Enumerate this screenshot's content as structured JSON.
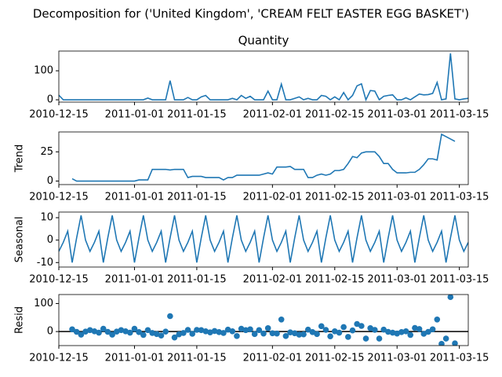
{
  "chart_data": {
    "type": "decomposition",
    "title": "Decomposition for ('United Kingdom', 'CREAM FELT EASTER EGG BASKET')",
    "color": "#1f77b4",
    "x": [
      "2010-12-15",
      "2010-12-16",
      "2010-12-17",
      "2010-12-18",
      "2010-12-19",
      "2010-12-20",
      "2010-12-21",
      "2010-12-22",
      "2010-12-23",
      "2010-12-24",
      "2010-12-25",
      "2010-12-26",
      "2010-12-27",
      "2010-12-28",
      "2010-12-29",
      "2010-12-30",
      "2010-12-31",
      "2011-01-01",
      "2011-01-02",
      "2011-01-03",
      "2011-01-04",
      "2011-01-05",
      "2011-01-06",
      "2011-01-07",
      "2011-01-08",
      "2011-01-09",
      "2011-01-10",
      "2011-01-11",
      "2011-01-12",
      "2011-01-13",
      "2011-01-14",
      "2011-01-15",
      "2011-01-16",
      "2011-01-17",
      "2011-01-18",
      "2011-01-19",
      "2011-01-20",
      "2011-01-21",
      "2011-01-22",
      "2011-01-23",
      "2011-01-24",
      "2011-01-25",
      "2011-01-26",
      "2011-01-27",
      "2011-01-28",
      "2011-01-29",
      "2011-01-30",
      "2011-01-31",
      "2011-02-01",
      "2011-02-02",
      "2011-02-03",
      "2011-02-04",
      "2011-02-05",
      "2011-02-06",
      "2011-02-07",
      "2011-02-08",
      "2011-02-09",
      "2011-02-10",
      "2011-02-11",
      "2011-02-12",
      "2011-02-13",
      "2011-02-14",
      "2011-02-15",
      "2011-02-16",
      "2011-02-17",
      "2011-02-18",
      "2011-02-19",
      "2011-02-20",
      "2011-02-21",
      "2011-02-22",
      "2011-02-23",
      "2011-02-24",
      "2011-02-25",
      "2011-02-26",
      "2011-02-27",
      "2011-02-28",
      "2011-03-01",
      "2011-03-02",
      "2011-03-03",
      "2011-03-04",
      "2011-03-05",
      "2011-03-06",
      "2011-03-07",
      "2011-03-08",
      "2011-03-09",
      "2011-03-10",
      "2011-03-11",
      "2011-03-12",
      "2011-03-13",
      "2011-03-14",
      "2011-03-15",
      "2011-03-16",
      "2011-03-17"
    ],
    "xlim": [
      "2010-12-15",
      "2011-03-17"
    ],
    "xticks": [
      "2010-12-15",
      "2011-01-01",
      "2011-01-15",
      "2011-02-01",
      "2011-02-15",
      "2011-03-01",
      "2011-03-15"
    ],
    "panels": [
      {
        "type": "line",
        "title": "Quantity",
        "ylim": [
          -8,
          168
        ],
        "yticks": [
          0,
          100
        ],
        "values": [
          16,
          0,
          0,
          0,
          0,
          0,
          0,
          0,
          0,
          0,
          0,
          0,
          0,
          0,
          0,
          0,
          0,
          0,
          0,
          0,
          6,
          0,
          0,
          0,
          0,
          66,
          0,
          0,
          0,
          8,
          0,
          0,
          10,
          15,
          0,
          0,
          0,
          0,
          0,
          5,
          0,
          15,
          5,
          12,
          0,
          0,
          0,
          30,
          0,
          0,
          54,
          0,
          0,
          5,
          10,
          0,
          5,
          0,
          0,
          15,
          12,
          0,
          10,
          0,
          25,
          0,
          15,
          48,
          55,
          0,
          32,
          30,
          0,
          12,
          15,
          17,
          0,
          0,
          7,
          0,
          10,
          20,
          17,
          18,
          22,
          60,
          0,
          3,
          160,
          3,
          0,
          3,
          5
        ]
      },
      {
        "type": "line",
        "ylabel": "Trend",
        "ylim": [
          -3,
          42
        ],
        "yticks": [
          0,
          25
        ],
        "values": [
          null,
          null,
          null,
          2,
          0,
          0,
          0,
          0,
          0,
          0,
          0,
          0,
          0,
          0,
          0,
          0,
          0,
          0,
          1,
          1,
          1,
          10,
          10,
          10,
          10,
          9.5,
          10,
          10,
          10,
          3,
          4,
          4,
          4,
          3,
          3,
          3,
          3,
          1,
          3,
          3,
          5,
          5,
          5,
          5,
          5,
          5,
          6,
          7,
          6,
          12,
          12,
          12,
          12.5,
          10,
          10,
          10,
          3,
          3,
          5,
          6,
          5,
          6,
          9,
          9,
          10,
          15,
          21,
          20,
          24,
          25,
          25,
          25,
          21,
          15,
          15,
          10,
          7,
          7,
          7,
          7.5,
          7.5,
          10,
          14,
          19,
          19,
          18,
          40,
          38,
          36,
          34,
          null,
          null,
          null
        ]
      },
      {
        "type": "line",
        "ylabel": "Seasonal",
        "ylim": [
          -12,
          12.5
        ],
        "yticks": [
          -10,
          0,
          10
        ],
        "values": [
          -5,
          -1,
          4,
          -10,
          1,
          11,
          0,
          -5,
          -1,
          4,
          -10,
          1,
          11,
          0,
          -5,
          -1,
          4,
          -10,
          1,
          11,
          0,
          -5,
          -1,
          4,
          -10,
          1,
          11,
          0,
          -5,
          -1,
          4,
          -10,
          1,
          11,
          0,
          -5,
          -1,
          4,
          -10,
          1,
          11,
          0,
          -5,
          -1,
          4,
          -10,
          1,
          11,
          0,
          -5,
          -1,
          4,
          -10,
          1,
          11,
          0,
          -5,
          -1,
          4,
          -10,
          1,
          11,
          0,
          -5,
          -1,
          4,
          -10,
          1,
          11,
          0,
          -5,
          -1,
          4,
          -10,
          1,
          11,
          0,
          -5,
          -1,
          4,
          -10,
          1,
          11,
          0,
          -5,
          -1,
          4,
          -10,
          1,
          11,
          0,
          -5,
          -1
        ]
      },
      {
        "type": "scatter",
        "ylabel": "Resid",
        "ylim": [
          -50,
          132
        ],
        "yticks": [
          0,
          100
        ],
        "zero_line": true,
        "values": [
          null,
          null,
          null,
          8,
          -1,
          -11,
          0,
          5,
          1,
          -4,
          10,
          -1,
          -11,
          0,
          5,
          1,
          -4,
          10,
          -2,
          -12,
          5,
          -5,
          -9,
          -14,
          0,
          55,
          -21,
          -10,
          -5,
          6,
          -8,
          6,
          5,
          1,
          -3,
          2,
          -2,
          -5,
          7,
          1,
          -16,
          10,
          5,
          8,
          -9,
          5,
          -7,
          12,
          -6,
          -7,
          43,
          -16,
          -3,
          -6,
          -11,
          -10,
          7,
          -2,
          -9,
          19,
          6,
          -17,
          1,
          -4,
          16,
          -19,
          4,
          27,
          20,
          -25,
          12,
          6,
          -25,
          7,
          -1,
          -4,
          -7,
          -2,
          1,
          -12,
          13,
          9,
          -8,
          -1,
          8,
          43,
          -44,
          -25,
          123,
          -42,
          null,
          null,
          null
        ]
      }
    ]
  }
}
